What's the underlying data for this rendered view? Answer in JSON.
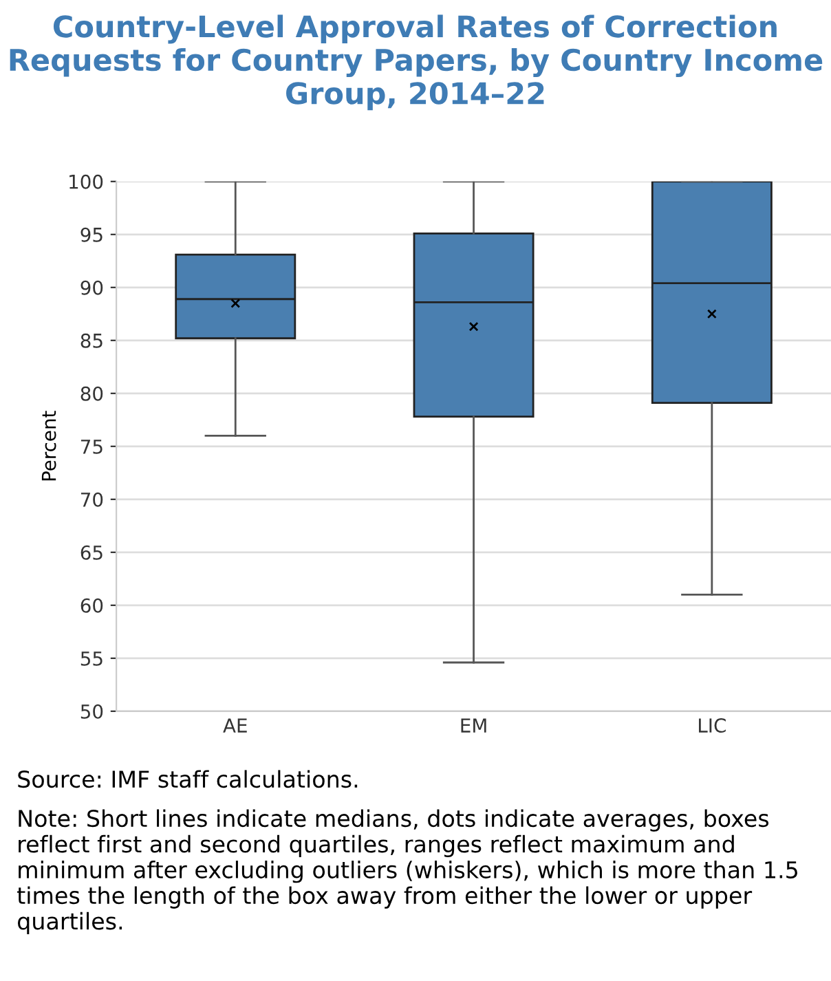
{
  "chart_data": {
    "type": "box",
    "title": "Country-Level Approval Rates of Correction Requests for Country Papers, by Country Income Group, 2014–22",
    "ylabel": "Percent",
    "categories": [
      "AE",
      "EM",
      "LIC"
    ],
    "boxes": [
      {
        "low": 76.0,
        "q1": 85.2,
        "median": 88.9,
        "q3": 93.1,
        "high": 100,
        "mean": 88.5
      },
      {
        "low": 54.6,
        "q1": 77.8,
        "median": 88.6,
        "q3": 95.1,
        "high": 100,
        "mean": 86.3
      },
      {
        "low": 61.0,
        "q1": 79.1,
        "median": 90.4,
        "q3": 100,
        "high": 100,
        "mean": 87.5
      }
    ],
    "color": "#4a7fb0",
    "ylim": [
      50,
      100
    ],
    "yticks": [
      50,
      55,
      60,
      65,
      70,
      75,
      80,
      85,
      90,
      95,
      100
    ],
    "grid": "y",
    "marker": "cross",
    "annotations": [
      "Source: IMF staff calculations.",
      "Note: Short lines indicate medians, dots indicate averages, boxes reflect first and second quartiles, ranges reflect maximum and minimum after excluding outliers (whiskers), which is more than 1.5 times the length of the box away from either the lower or upper quartiles."
    ]
  }
}
